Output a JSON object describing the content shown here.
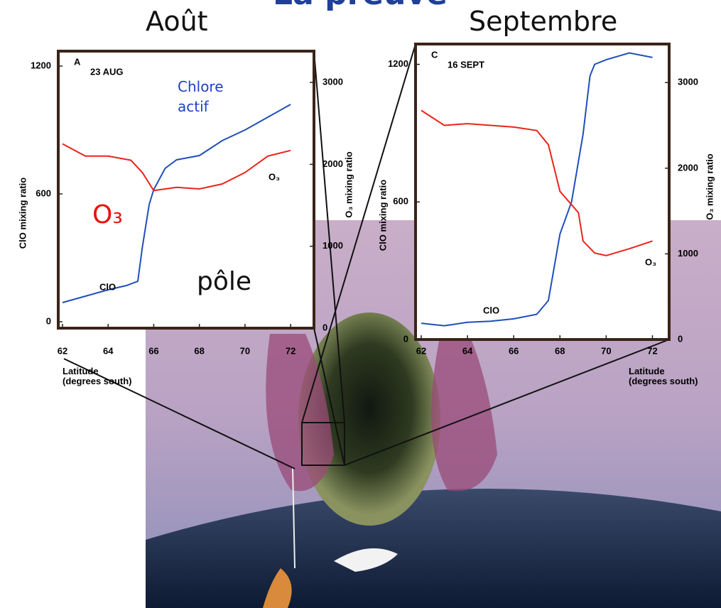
{
  "title": "La preuve",
  "headings": [
    "Août",
    "Septembre"
  ],
  "annotations": [
    {
      "text": "Chlore actif",
      "color": "#1f3fc8"
    },
    {
      "text": "O₃",
      "color": "#e8120c"
    },
    {
      "text": "pôle",
      "color": "#111111"
    }
  ],
  "chart_data": [
    {
      "type": "line",
      "panel": "A",
      "date": "23 AUG",
      "x_label": "Latitude (degrees south)",
      "y_label": "ClO mixing ratio",
      "y2_label": "O₃ mixing ratio",
      "xlim": [
        62,
        72.9
      ],
      "ylim": [
        -30,
        1250
      ],
      "y2lim": [
        0,
        3330
      ],
      "xticks": [
        62,
        64,
        66,
        68,
        70,
        72
      ],
      "yticks": [
        0,
        600,
        1200
      ],
      "y2ticks": [
        0,
        1000,
        2000,
        3000
      ],
      "series": [
        {
          "name": "ClO",
          "color": "#1f4fb8",
          "x": [
            62,
            63,
            64,
            64.8,
            65.3,
            65.5,
            65.8,
            66,
            66.5,
            67,
            68,
            69,
            70,
            71,
            72
          ],
          "values": [
            90,
            120,
            150,
            170,
            190,
            350,
            550,
            620,
            720,
            760,
            780,
            850,
            900,
            960,
            1020
          ]
        },
        {
          "name": "O₃",
          "color": "#e8251c",
          "axis": "y2",
          "x": [
            62,
            63,
            64,
            65,
            65.5,
            66,
            67,
            68,
            69,
            70,
            71,
            72
          ],
          "values": [
            2250,
            2100,
            2100,
            2050,
            1900,
            1680,
            1720,
            1700,
            1760,
            1900,
            2100,
            2170
          ]
        }
      ]
    },
    {
      "type": "line",
      "panel": "C",
      "date": "16 SEPT",
      "x_label": "Latitude (degrees south)",
      "y_label": "ClO mixing ratio",
      "y2_label": "O₃ mixing ratio",
      "xlim": [
        62,
        72.6
      ],
      "ylim": [
        0,
        1270
      ],
      "y2lim": [
        0,
        3400
      ],
      "xticks": [
        62,
        64,
        66,
        68,
        70,
        72
      ],
      "yticks": [
        0,
        600,
        1200
      ],
      "y2ticks": [
        0,
        1000,
        2000,
        3000
      ],
      "series": [
        {
          "name": "ClO",
          "color": "#1f4fb8",
          "x": [
            62,
            63,
            64,
            65,
            66,
            67,
            67.5,
            68,
            68.5,
            69,
            69.3,
            69.5,
            70,
            71,
            72
          ],
          "values": [
            71,
            60,
            75,
            80,
            90,
            110,
            170,
            460,
            600,
            895,
            1150,
            1200,
            1220,
            1250,
            1230
          ]
        },
        {
          "name": "O₃",
          "color": "#e8251c",
          "axis": "y2",
          "x": [
            62,
            63,
            64,
            65,
            66,
            67,
            67.5,
            68,
            68.8,
            69,
            69.5,
            70,
            71,
            72
          ],
          "values": [
            2675,
            2500,
            2520,
            2500,
            2480,
            2440,
            2275,
            1730,
            1480,
            1150,
            1010,
            980,
            1060,
            1150
          ]
        }
      ]
    }
  ]
}
